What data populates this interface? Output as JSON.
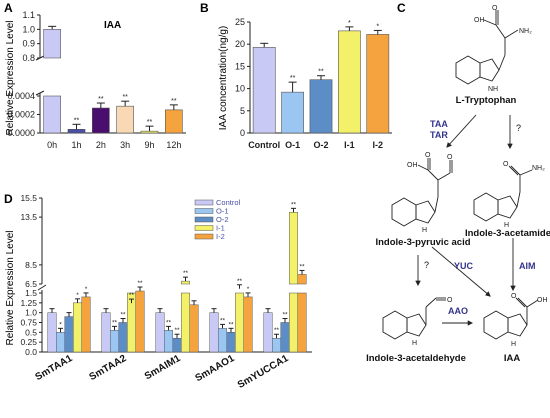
{
  "panels": {
    "A": "A",
    "B": "B",
    "C": "C",
    "D": "D"
  },
  "colors": {
    "periwinkle": "#c9c9f5",
    "indigo": "#4a4ea6",
    "purple": "#4a0e6e",
    "peach": "#f9d9b5",
    "yellow": "#f3f06a",
    "orange": "#f5a33f",
    "lightblue": "#9cc6f2",
    "steelblue": "#5c8dc7"
  },
  "chart_data": [
    {
      "panel": "A",
      "type": "bar",
      "title": "IAA",
      "ylabel": "Relative Expression Level",
      "categories": [
        "0h",
        "1h",
        "2h",
        "3h",
        "9h",
        "12h"
      ],
      "values": [
        1.0,
        4e-05,
        0.00027,
        0.00029,
        2e-05,
        0.00025
      ],
      "y_ticks_top": [
        "0.8",
        "0.9",
        "1.0",
        "1.1"
      ],
      "y_ticks_bottom": [
        "0.0000",
        "0.0002",
        "0.0004"
      ],
      "annotations": [
        "",
        "**",
        "**",
        "**",
        "**",
        "**"
      ]
    },
    {
      "panel": "B",
      "type": "bar",
      "ylabel": "IAA concentration(ng/g)",
      "categories": [
        "Control",
        "O-1",
        "O-2",
        "I-1",
        "I-2"
      ],
      "values": [
        19.3,
        9.2,
        12.0,
        23.0,
        22.2
      ],
      "ylim": [
        0,
        25
      ],
      "y_ticks": [
        "0",
        "5",
        "10",
        "15",
        "20",
        "25"
      ],
      "annotations": [
        "",
        "**",
        "**",
        "*",
        "*"
      ]
    },
    {
      "panel": "D",
      "type": "bar",
      "ylabel": "Relative Expression Level",
      "categories": [
        "SmTAA1",
        "SmTAA2",
        "SmAIM1",
        "SmAAO1",
        "SmYUCCA1"
      ],
      "series": [
        {
          "name": "Control",
          "values": [
            1.0,
            1.0,
            1.0,
            1.0,
            1.0
          ]
        },
        {
          "name": "O-1",
          "values": [
            0.5,
            0.55,
            0.55,
            0.6,
            0.35
          ]
        },
        {
          "name": "O-2",
          "values": [
            0.9,
            0.75,
            0.35,
            0.5,
            0.75
          ]
        },
        {
          "name": "I-1",
          "values": [
            1.25,
            4.5,
            6.8,
            6.0,
            14.0
          ]
        },
        {
          "name": "I-2",
          "values": [
            1.4,
            1.55,
            1.2,
            1.4,
            7.5
          ]
        }
      ],
      "y_ticks": [
        "0.0",
        "0.25",
        "0.5",
        "0.75",
        "1.0",
        "1.25",
        "1.5",
        "6.5",
        "8.5",
        "13.5",
        "15.5"
      ],
      "annotations": [
        [
          "",
          "*",
          "",
          "*",
          "*"
        ],
        [
          "",
          "**",
          "**",
          "**",
          "**"
        ],
        [
          "",
          "**",
          "**",
          "**",
          ""
        ],
        [
          "",
          "**",
          "**",
          "**",
          "*"
        ],
        [
          "",
          "**",
          "**",
          "**",
          "**"
        ]
      ]
    }
  ],
  "pathway": {
    "ltrp": "L-Tryptophan",
    "ipa": "Indole-3-pyruvic acid",
    "iam": "Indole-3-acetamide",
    "iaald": "Indole-3-acetaldehyde",
    "iaa": "IAA",
    "enz_taa": "TAA",
    "enz_tar": "TAR",
    "enz_q1": "?",
    "enz_q2": "?",
    "enz_yuc": "YUC",
    "enz_aim": "AIM",
    "enz_aao": "AAO",
    "atom_o": "O",
    "atom_oh": "OH",
    "atom_nh2": "NH₂",
    "atom_nh": "NH",
    "atom_h": "H",
    "atom_n": "N"
  }
}
